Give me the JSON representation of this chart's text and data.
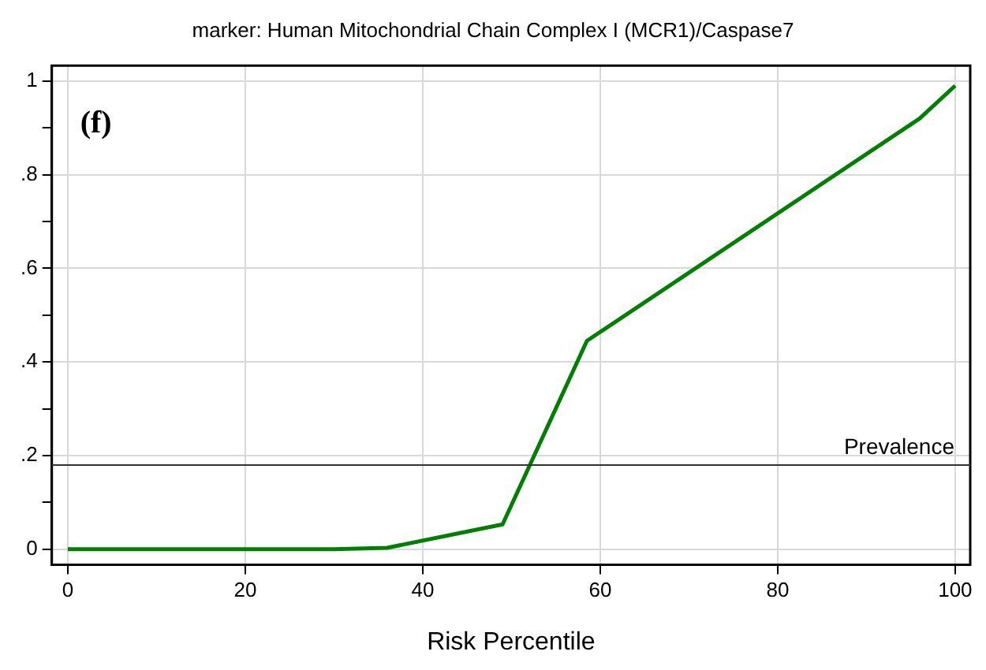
{
  "chart_data": {
    "type": "line",
    "title": "marker: Human Mitochondrial Chain Complex I (MCR1)/Caspase7",
    "xlabel": "Risk Percentile",
    "x": [
      0,
      30,
      36,
      49,
      58.5,
      96,
      100
    ],
    "series": [
      {
        "color": "#008000",
        "values": [
          0,
          0,
          0.003,
          0.053,
          0.445,
          0.92,
          0.99
        ]
      }
    ],
    "xlim": [
      -1.8,
      101.7
    ],
    "xticks": [
      0,
      20,
      40,
      60,
      80,
      100
    ],
    "ylim": [
      -0.033,
      1.033
    ],
    "yticks": [
      {
        "value": 0,
        "label": "0"
      },
      {
        "value": 0.1,
        "label": null
      },
      {
        "value": 0.2,
        "label": ".2"
      },
      {
        "value": 0.3,
        "label": null
      },
      {
        "value": 0.4,
        "label": ".4"
      },
      {
        "value": 0.5,
        "label": null
      },
      {
        "value": 0.6,
        "label": ".6"
      },
      {
        "value": 0.7,
        "label": null
      },
      {
        "value": 0.8,
        "label": ".8"
      },
      {
        "value": 0.9,
        "label": null
      },
      {
        "value": 1,
        "label": "1"
      }
    ],
    "ref_lines": [
      {
        "axis": "y",
        "value": 0.18,
        "label": "Prevalence",
        "color": "#333333"
      }
    ],
    "annotations": [
      "(f)"
    ],
    "grid": true,
    "legend": false,
    "marker": "none",
    "line_style": "solid"
  }
}
